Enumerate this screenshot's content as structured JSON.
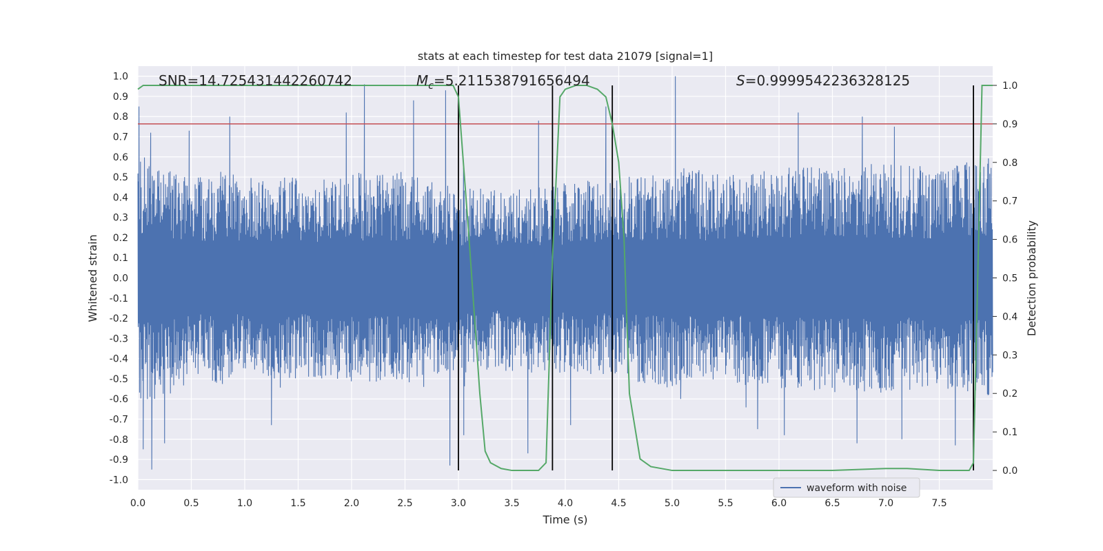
{
  "chart_data": {
    "type": "line",
    "title": "stats at each timestep for test data 21079 [signal=1]",
    "xlabel": "Time (s)",
    "ylabel": "Whitened strain",
    "y2label": "Detection probability",
    "xlim": [
      0.0,
      8.0
    ],
    "ylim": [
      -1.05,
      1.05
    ],
    "y2lim": [
      -0.05,
      1.05
    ],
    "xticks": [
      "0.0",
      "0.5",
      "1.0",
      "1.5",
      "2.0",
      "2.5",
      "3.0",
      "3.5",
      "4.0",
      "4.5",
      "5.0",
      "5.5",
      "6.0",
      "6.5",
      "7.0",
      "7.5"
    ],
    "yticks": [
      "1.0",
      "0.9",
      "0.8",
      "0.7",
      "0.6",
      "0.5",
      "0.4",
      "0.3",
      "0.2",
      "0.1",
      "0.0",
      "-0.1",
      "-0.2",
      "-0.3",
      "-0.4",
      "-0.5",
      "-0.6",
      "-0.7",
      "-0.8",
      "-0.9",
      "-1.0"
    ],
    "y2ticks": [
      "1.0",
      "0.9",
      "0.8",
      "0.7",
      "0.6",
      "0.5",
      "0.4",
      "0.3",
      "0.2",
      "0.1",
      "0.0"
    ],
    "annotations": {
      "snr": "SNR=14.725431442260742",
      "mc_symbol": "M",
      "mc_sub": "c",
      "mc_value": "=5.211538791656494",
      "s_symbol": "S",
      "s_value": "=0.9999542236328125"
    },
    "grid": true,
    "legend": {
      "position": "lower-right",
      "entries": [
        "waveform with noise"
      ]
    },
    "colors": {
      "waveform": "#4c72b0",
      "probability": "#55a868",
      "threshold": "#c44e52",
      "markers": "#000000",
      "background": "#eaeaf2",
      "grid": "#ffffff"
    },
    "threshold": {
      "y2": 0.9
    },
    "markers_x": [
      3.0,
      3.88,
      4.44,
      7.82
    ],
    "series": [
      {
        "name": "waveform with noise",
        "envelope_x": [
          0.0,
          0.1,
          0.2,
          0.4,
          0.6,
          0.8,
          1.0,
          1.5,
          2.0,
          2.5,
          3.0,
          3.5,
          4.0,
          4.5,
          5.0,
          5.5,
          6.0,
          6.5,
          7.0,
          7.5,
          8.0
        ],
        "envelope_upper": [
          0.62,
          0.6,
          0.55,
          0.53,
          0.5,
          0.53,
          0.5,
          0.5,
          0.52,
          0.53,
          0.45,
          0.45,
          0.47,
          0.5,
          0.55,
          0.52,
          0.55,
          0.57,
          0.57,
          0.55,
          0.6
        ],
        "envelope_lower": [
          -0.62,
          -0.62,
          -0.6,
          -0.55,
          -0.5,
          -0.53,
          -0.5,
          -0.5,
          -0.52,
          -0.53,
          -0.45,
          -0.47,
          -0.47,
          -0.5,
          -0.55,
          -0.52,
          -0.55,
          -0.57,
          -0.57,
          -0.55,
          -0.6
        ],
        "spikes_up": [
          [
            0.01,
            0.85
          ],
          [
            0.12,
            0.72
          ],
          [
            0.48,
            0.73
          ],
          [
            0.86,
            0.8
          ],
          [
            1.95,
            0.82
          ],
          [
            2.12,
            0.96
          ],
          [
            2.58,
            0.88
          ],
          [
            2.88,
            0.93
          ],
          [
            3.75,
            0.78
          ],
          [
            4.38,
            0.85
          ],
          [
            5.03,
            1.0
          ],
          [
            6.18,
            0.82
          ],
          [
            6.78,
            0.8
          ],
          [
            7.08,
            0.75
          ]
        ],
        "spikes_down": [
          [
            0.05,
            -0.85
          ],
          [
            0.13,
            -0.95
          ],
          [
            0.25,
            -0.82
          ],
          [
            1.25,
            -0.73
          ],
          [
            2.92,
            -0.93
          ],
          [
            3.05,
            -0.78
          ],
          [
            3.65,
            -0.87
          ],
          [
            4.05,
            -0.73
          ],
          [
            5.08,
            -0.6
          ],
          [
            5.8,
            -0.75
          ],
          [
            6.05,
            -0.78
          ],
          [
            6.73,
            -0.82
          ],
          [
            7.15,
            -0.8
          ],
          [
            7.65,
            -0.83
          ]
        ]
      },
      {
        "name": "detection probability",
        "x": [
          0.0,
          0.05,
          0.1,
          0.5,
          1.0,
          1.5,
          2.0,
          2.5,
          2.8,
          2.95,
          3.0,
          3.1,
          3.2,
          3.25,
          3.3,
          3.4,
          3.5,
          3.6,
          3.7,
          3.75,
          3.82,
          3.88,
          3.95,
          4.0,
          4.1,
          4.2,
          4.3,
          4.38,
          4.44,
          4.5,
          4.55,
          4.6,
          4.7,
          4.8,
          5.0,
          6.0,
          6.5,
          7.0,
          7.2,
          7.5,
          7.78,
          7.82,
          7.86,
          7.9,
          8.0
        ],
        "y": [
          0.99,
          1.0,
          1.0,
          1.0,
          1.0,
          1.0,
          1.0,
          1.0,
          1.0,
          1.0,
          0.97,
          0.6,
          0.2,
          0.05,
          0.02,
          0.005,
          0.0,
          0.0,
          0.0,
          0.0,
          0.02,
          0.55,
          0.97,
          0.99,
          1.0,
          1.0,
          0.99,
          0.97,
          0.9,
          0.8,
          0.6,
          0.2,
          0.03,
          0.01,
          0.0,
          0.0,
          0.0,
          0.005,
          0.005,
          0.0,
          0.0,
          0.02,
          0.5,
          1.0,
          1.0
        ]
      }
    ]
  }
}
